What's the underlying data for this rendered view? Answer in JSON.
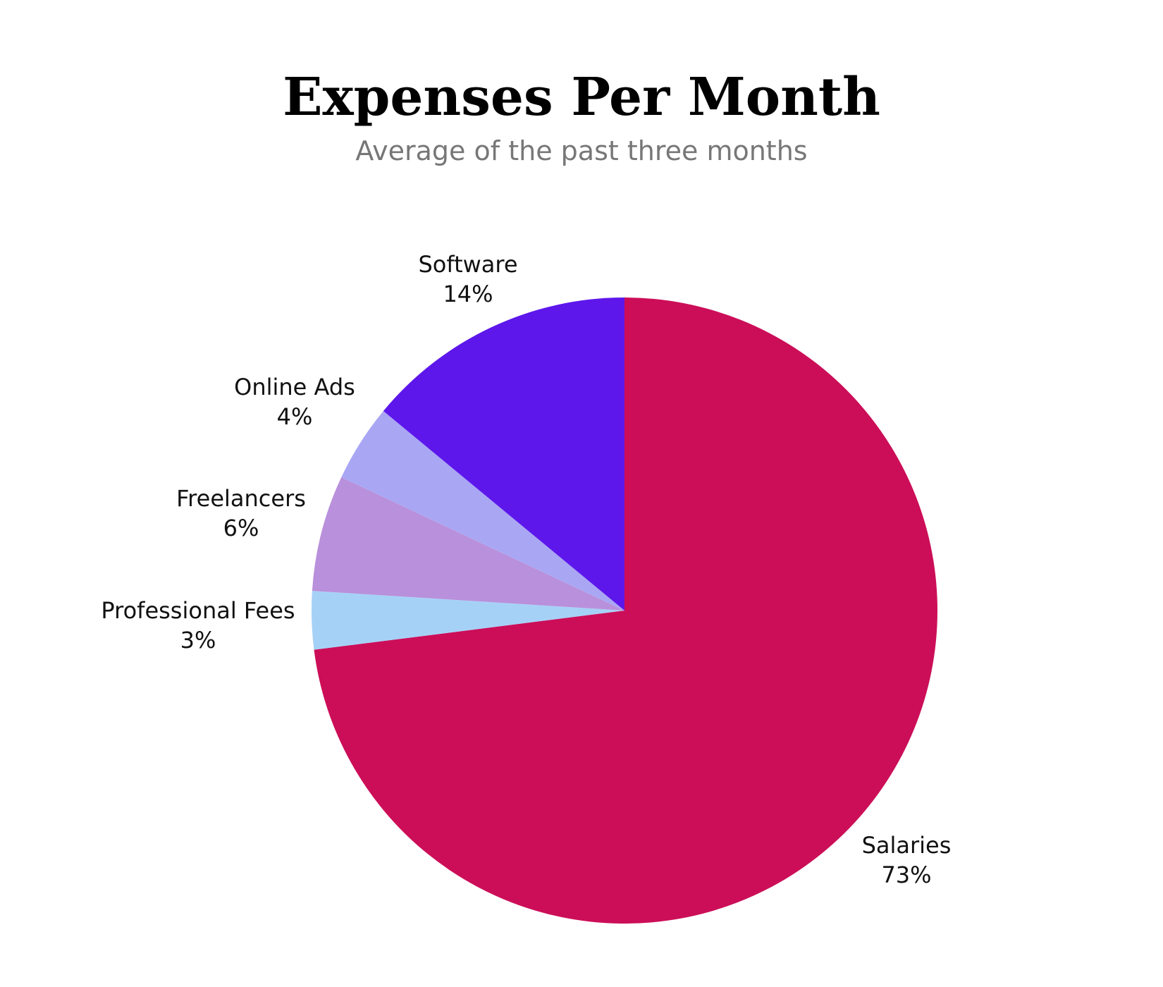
{
  "chart_data": {
    "type": "pie",
    "title": "Expenses Per Month",
    "subtitle": "Average of the past three months",
    "start_angle_deg": 0,
    "direction": "clockwise",
    "slices": [
      {
        "name": "Salaries",
        "value": 73,
        "label": "73%",
        "color": "#CC0E58"
      },
      {
        "name": "Professional Fees",
        "value": 3,
        "label": "3%",
        "color": "#A6D1F7"
      },
      {
        "name": "Freelancers",
        "value": 6,
        "label": "6%",
        "color": "#B990DB"
      },
      {
        "name": "Online Ads",
        "value": 4,
        "label": "4%",
        "color": "#A9A7F4"
      },
      {
        "name": "Software",
        "value": 14,
        "label": "14%",
        "color": "#5D17EB"
      }
    ]
  }
}
